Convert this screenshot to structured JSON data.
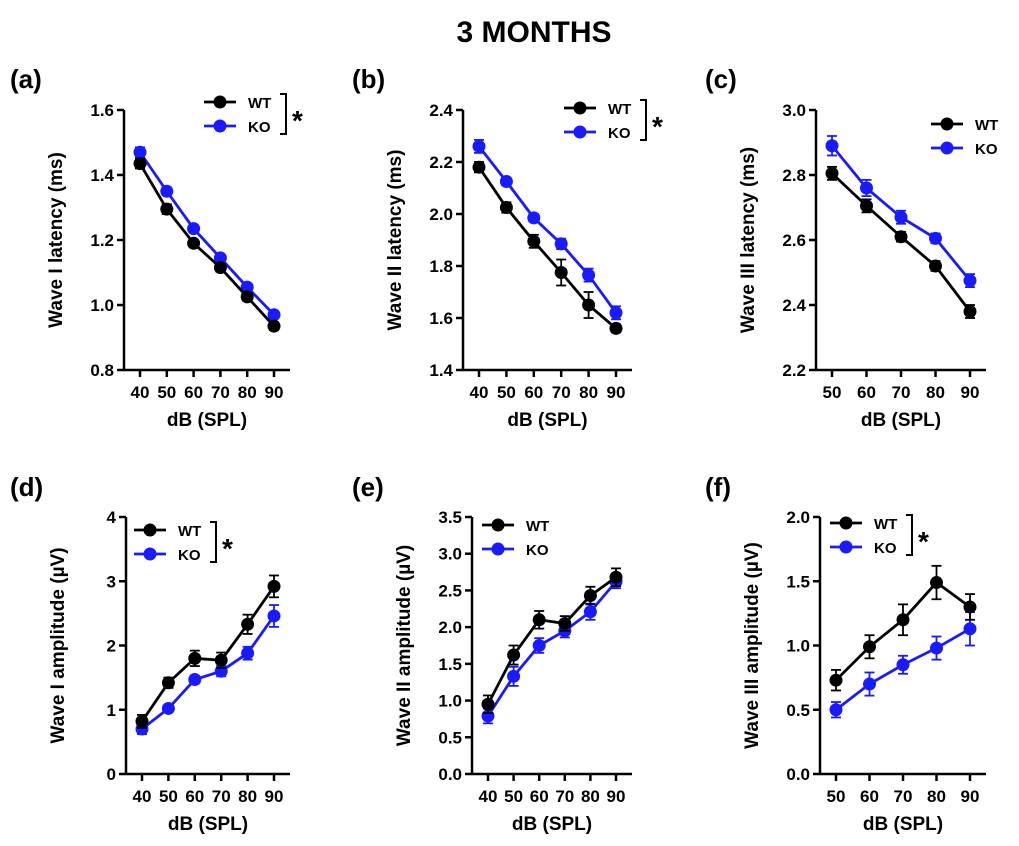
{
  "figure_title": "3 MONTHS",
  "colors": {
    "WT": "#000000",
    "KO": "#1a1aff"
  },
  "chart_data": [
    {
      "panel": "(a)",
      "type": "line",
      "xlabel": "dB (SPL)",
      "ylabel": "Wave I latency (ms)",
      "x": [
        40,
        50,
        60,
        70,
        80,
        90
      ],
      "x_tick_labels": [
        "40",
        "50",
        "60",
        "70",
        "80",
        "90"
      ],
      "ylim": [
        0.8,
        1.6
      ],
      "y_tick_labels": [
        "0.8",
        "1.0",
        "1.2",
        "1.4",
        "1.6"
      ],
      "legend": [
        "WT",
        "KO"
      ],
      "legend_placement": "top-right",
      "significance": "*",
      "series": [
        {
          "name": "WT",
          "values": [
            1.435,
            1.295,
            1.19,
            1.115,
            1.025,
            0.935
          ],
          "error": [
            0.015,
            0.015,
            0.01,
            0.012,
            0.012,
            0.012
          ]
        },
        {
          "name": "KO",
          "values": [
            1.47,
            1.35,
            1.235,
            1.145,
            1.055,
            0.97
          ],
          "error": [
            0.015,
            0.012,
            0.01,
            0.01,
            0.01,
            0.01
          ]
        }
      ]
    },
    {
      "panel": "(b)",
      "type": "line",
      "xlabel": "dB (SPL)",
      "ylabel": "Wave II latency (ms)",
      "x": [
        40,
        50,
        60,
        70,
        80,
        90
      ],
      "x_tick_labels": [
        "40",
        "50",
        "60",
        "70",
        "80",
        "90"
      ],
      "ylim": [
        1.4,
        2.4
      ],
      "y_tick_labels": [
        "1.4",
        "1.6",
        "1.8",
        "2.0",
        "2.2",
        "2.4"
      ],
      "legend": [
        "WT",
        "KO"
      ],
      "legend_placement": "top-right",
      "significance": "*",
      "series": [
        {
          "name": "WT",
          "values": [
            2.18,
            2.025,
            1.895,
            1.775,
            1.65,
            1.56
          ],
          "error": [
            0.02,
            0.02,
            0.025,
            0.05,
            0.05,
            0.015
          ]
        },
        {
          "name": "KO",
          "values": [
            2.26,
            2.125,
            1.985,
            1.885,
            1.765,
            1.62
          ],
          "error": [
            0.025,
            0.015,
            0.015,
            0.02,
            0.025,
            0.025
          ]
        }
      ]
    },
    {
      "panel": "(c)",
      "type": "line",
      "xlabel": "dB (SPL)",
      "ylabel": "Wave III latency (ms)",
      "x": [
        50,
        60,
        70,
        80,
        90
      ],
      "x_tick_labels": [
        "50",
        "60",
        "70",
        "80",
        "90"
      ],
      "ylim": [
        2.2,
        3.0
      ],
      "y_tick_labels": [
        "2.2",
        "2.4",
        "2.6",
        "2.8",
        "3.0"
      ],
      "legend": [
        "WT",
        "KO"
      ],
      "legend_placement": "top-right",
      "significance": "",
      "series": [
        {
          "name": "WT",
          "values": [
            2.805,
            2.705,
            2.61,
            2.52,
            2.38
          ],
          "error": [
            0.02,
            0.02,
            0.015,
            0.015,
            0.02
          ]
        },
        {
          "name": "KO",
          "values": [
            2.89,
            2.76,
            2.67,
            2.605,
            2.475
          ],
          "error": [
            0.03,
            0.025,
            0.02,
            0.015,
            0.02
          ]
        }
      ]
    },
    {
      "panel": "(d)",
      "type": "line",
      "xlabel": "dB (SPL)",
      "ylabel": "Wave I amplitude (µV)",
      "x": [
        40,
        50,
        60,
        70,
        80,
        90
      ],
      "x_tick_labels": [
        "40",
        "50",
        "60",
        "70",
        "80",
        "90"
      ],
      "ylim": [
        0,
        4
      ],
      "y_tick_labels": [
        "0",
        "1",
        "2",
        "3",
        "4"
      ],
      "legend": [
        "WT",
        "KO"
      ],
      "legend_placement": "top-right",
      "significance": "*",
      "series": [
        {
          "name": "WT",
          "values": [
            0.82,
            1.42,
            1.8,
            1.77,
            2.33,
            2.92
          ],
          "error": [
            0.1,
            0.08,
            0.12,
            0.12,
            0.15,
            0.17
          ]
        },
        {
          "name": "KO",
          "values": [
            0.7,
            1.02,
            1.47,
            1.6,
            1.88,
            2.46
          ],
          "error": [
            0.08,
            0.05,
            0.06,
            0.08,
            0.1,
            0.17
          ]
        }
      ]
    },
    {
      "panel": "(e)",
      "type": "line",
      "xlabel": "dB (SPL)",
      "ylabel": "Wave II amplitude (µV)",
      "x": [
        40,
        50,
        60,
        70,
        80,
        90
      ],
      "x_tick_labels": [
        "40",
        "50",
        "60",
        "70",
        "80",
        "90"
      ],
      "ylim": [
        0,
        3.5
      ],
      "y_tick_labels": [
        "0.0",
        "0.5",
        "1.0",
        "1.5",
        "2.0",
        "2.5",
        "3.0",
        "3.5"
      ],
      "legend": [
        "WT",
        "KO"
      ],
      "legend_placement": "top-left",
      "significance": "",
      "series": [
        {
          "name": "WT",
          "values": [
            0.95,
            1.62,
            2.1,
            2.05,
            2.43,
            2.68
          ],
          "error": [
            0.12,
            0.13,
            0.12,
            0.1,
            0.12,
            0.12
          ]
        },
        {
          "name": "KO",
          "values": [
            0.79,
            1.33,
            1.75,
            1.95,
            2.21,
            2.62
          ],
          "error": [
            0.1,
            0.13,
            0.1,
            0.09,
            0.11,
            0.09
          ]
        }
      ]
    },
    {
      "panel": "(f)",
      "type": "line",
      "xlabel": "dB (SPL)",
      "ylabel": "Wave III amplitude (µV)",
      "x": [
        50,
        60,
        70,
        80,
        90
      ],
      "x_tick_labels": [
        "50",
        "60",
        "70",
        "80",
        "90"
      ],
      "ylim": [
        0,
        2.0
      ],
      "y_tick_labels": [
        "0.0",
        "0.5",
        "1.0",
        "1.5",
        "2.0"
      ],
      "legend": [
        "WT",
        "KO"
      ],
      "legend_placement": "top-right",
      "significance": "*",
      "series": [
        {
          "name": "WT",
          "values": [
            0.73,
            0.99,
            1.2,
            1.49,
            1.3
          ],
          "error": [
            0.08,
            0.09,
            0.12,
            0.13,
            0.1
          ]
        },
        {
          "name": "KO",
          "values": [
            0.5,
            0.7,
            0.85,
            0.98,
            1.13
          ],
          "error": [
            0.06,
            0.09,
            0.07,
            0.09,
            0.13
          ]
        }
      ]
    }
  ]
}
